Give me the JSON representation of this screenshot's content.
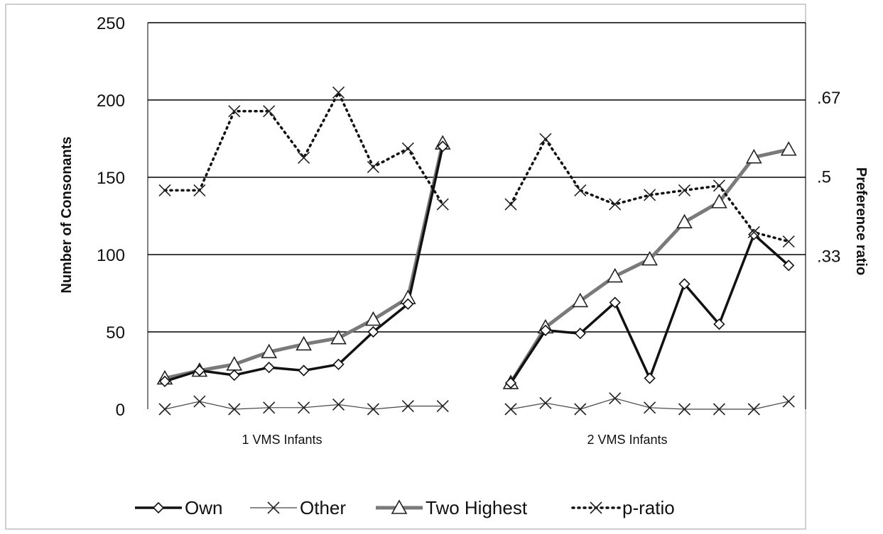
{
  "chart_data": {
    "type": "line",
    "ylabel": "Number of Consonants",
    "ylabel_right": "Preference ratio",
    "ylim": [
      0,
      250
    ],
    "yticks": [
      "0",
      "50",
      "100",
      "150",
      "200",
      "250"
    ],
    "yticks_right": [
      {
        "label": ".33",
        "value": 0.33
      },
      {
        "label": ".5",
        "value": 0.5
      },
      {
        "label": ".67",
        "value": 0.67
      }
    ],
    "ylim_right": [
      0,
      0.83
    ],
    "grid": true,
    "legend_position": "bottom",
    "groups": [
      {
        "label": "1 VMS Infants",
        "series": {
          "Own": [
            18,
            25,
            22,
            27,
            25,
            29,
            50,
            68,
            170
          ],
          "Other": [
            0,
            5,
            0,
            1,
            1,
            3,
            0,
            2,
            2
          ],
          "Two Highest": [
            20,
            25,
            29,
            37,
            42,
            46,
            58,
            72,
            172
          ],
          "p-ratio": [
            0.47,
            0.47,
            0.64,
            0.64,
            0.54,
            0.68,
            0.52,
            0.56,
            0.44
          ]
        }
      },
      {
        "label": "2 VMS Infants",
        "series": {
          "Own": [
            17,
            51,
            49,
            69,
            20,
            81,
            55,
            113,
            93
          ],
          "Other": [
            0,
            4,
            0,
            7,
            1,
            0,
            0,
            0,
            5
          ],
          "Two Highest": [
            17,
            53,
            70,
            86,
            97,
            121,
            134,
            163,
            168
          ],
          "p-ratio": [
            0.44,
            0.58,
            0.47,
            0.44,
            0.46,
            0.47,
            0.48,
            0.38,
            0.36
          ]
        }
      }
    ],
    "legend": [
      {
        "name": "Own",
        "marker": "diamond",
        "line": "solid-black"
      },
      {
        "name": "Other",
        "marker": "x",
        "line": "thin-black"
      },
      {
        "name": "Two Highest",
        "marker": "triangle",
        "line": "thick-gray"
      },
      {
        "name": "p-ratio",
        "marker": "x",
        "line": "dotted-black"
      }
    ],
    "colors": {
      "own": "#111111",
      "other": "#444444",
      "two_highest": "#7a7a7a",
      "p_ratio": "#111111",
      "grid": "#000000",
      "frame": "#bfbfbf"
    }
  }
}
